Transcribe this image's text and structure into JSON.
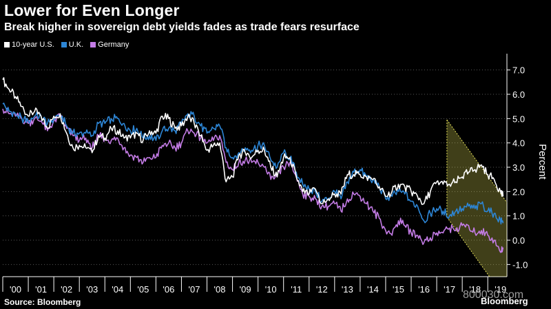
{
  "title": "Lower for Even Longer",
  "subtitle": "Break higher in sovereign debt yields fades as trade fears resurface",
  "source": "Source: Bloomberg",
  "brand": "Bloomberg",
  "watermark": "800030.com",
  "colors": {
    "us": "#ffffff",
    "uk": "#2d86d6",
    "germany": "#c47ce6",
    "highlight": "#e6e15a",
    "grid": "#5a5a5a",
    "axis": "#ffffff"
  },
  "chart_data": {
    "type": "line",
    "title": "Lower for Even Longer",
    "ylabel": "Percent",
    "xlabel": "",
    "ylim": [
      -1.5,
      7.5
    ],
    "yticks": [
      -1.0,
      0.0,
      1.0,
      2.0,
      3.0,
      4.0,
      5.0,
      6.0,
      7.0
    ],
    "ytick_labels": [
      "-1.0",
      "0.0",
      "1.0",
      "2.0",
      "3.0",
      "4.0",
      "5.0",
      "6.0",
      "7.0"
    ],
    "xlim": [
      2000.0,
      2019.75
    ],
    "xtick_labels": [
      "'00",
      "'01",
      "'02",
      "'03",
      "'04",
      "'05",
      "'06",
      "'07",
      "'08",
      "'09",
      "'10",
      "'11",
      "'12",
      "'13",
      "'14",
      "'15",
      "'16",
      "'17",
      "'18",
      "'19"
    ],
    "legend": [
      "10-year U.S.",
      "U.K.",
      "Germany"
    ],
    "annotation": {
      "type": "descending channel",
      "x_start": 2017.4,
      "x_end": 2019.75,
      "upper": [
        4.95,
        1.55
      ],
      "lower": [
        0.95,
        -2.5
      ]
    },
    "x": [
      2000.0,
      2000.25,
      2000.5,
      2000.75,
      2001.0,
      2001.25,
      2001.5,
      2001.75,
      2002.0,
      2002.25,
      2002.5,
      2002.75,
      2003.0,
      2003.25,
      2003.5,
      2003.75,
      2004.0,
      2004.25,
      2004.5,
      2004.75,
      2005.0,
      2005.25,
      2005.5,
      2005.75,
      2006.0,
      2006.25,
      2006.5,
      2006.75,
      2007.0,
      2007.25,
      2007.5,
      2007.75,
      2008.0,
      2008.25,
      2008.5,
      2008.75,
      2009.0,
      2009.25,
      2009.5,
      2009.75,
      2010.0,
      2010.25,
      2010.5,
      2010.75,
      2011.0,
      2011.25,
      2011.5,
      2011.75,
      2012.0,
      2012.25,
      2012.5,
      2012.75,
      2013.0,
      2013.25,
      2013.5,
      2013.75,
      2014.0,
      2014.25,
      2014.5,
      2014.75,
      2015.0,
      2015.25,
      2015.5,
      2015.75,
      2016.0,
      2016.25,
      2016.5,
      2016.75,
      2017.0,
      2017.25,
      2017.5,
      2017.75,
      2018.0,
      2018.25,
      2018.5,
      2018.75,
      2019.0,
      2019.25,
      2019.5,
      2019.6
    ],
    "series": [
      {
        "name": "10-year U.S.",
        "values": [
          6.6,
          6.2,
          5.9,
          5.5,
          5.1,
          5.3,
          5.1,
          4.6,
          5.1,
          5.2,
          4.4,
          3.8,
          3.9,
          3.8,
          3.6,
          4.3,
          4.2,
          4.6,
          4.5,
          4.2,
          4.2,
          4.4,
          4.1,
          4.5,
          4.4,
          5.1,
          5.0,
          4.6,
          4.7,
          5.1,
          4.8,
          4.3,
          3.7,
          3.9,
          4.0,
          2.4,
          2.6,
          3.5,
          3.6,
          3.4,
          3.7,
          3.7,
          3.0,
          2.6,
          3.4,
          3.4,
          2.6,
          2.0,
          1.9,
          2.1,
          1.5,
          1.7,
          1.9,
          1.9,
          2.7,
          2.7,
          2.7,
          2.6,
          2.5,
          2.2,
          1.8,
          2.0,
          2.3,
          2.2,
          2.0,
          1.8,
          1.5,
          2.0,
          2.4,
          2.3,
          2.3,
          2.4,
          2.6,
          2.8,
          2.9,
          3.1,
          2.7,
          2.5,
          2.0,
          1.8
        ]
      },
      {
        "name": "U.K.",
        "values": [
          5.6,
          5.3,
          5.2,
          5.0,
          4.9,
          5.1,
          5.1,
          4.8,
          5.0,
          5.2,
          4.7,
          4.4,
          4.4,
          4.4,
          4.3,
          4.8,
          4.8,
          5.0,
          5.0,
          4.8,
          4.5,
          4.6,
          4.2,
          4.3,
          4.1,
          4.5,
          4.6,
          4.5,
          4.8,
          5.2,
          5.1,
          4.7,
          4.4,
          4.6,
          4.7,
          3.8,
          3.4,
          3.6,
          3.8,
          3.7,
          3.9,
          3.9,
          3.3,
          3.0,
          3.6,
          3.4,
          2.8,
          2.3,
          2.1,
          2.0,
          1.6,
          1.7,
          2.0,
          1.7,
          2.4,
          2.8,
          2.9,
          2.6,
          2.5,
          2.2,
          1.7,
          1.8,
          2.0,
          1.9,
          1.6,
          1.4,
          0.8,
          1.1,
          1.3,
          1.2,
          1.0,
          1.2,
          1.3,
          1.4,
          1.3,
          1.5,
          1.2,
          1.1,
          0.8,
          0.7
        ]
      },
      {
        "name": "Germany",
        "values": [
          5.4,
          5.2,
          5.1,
          5.0,
          4.8,
          5.0,
          4.9,
          4.5,
          4.9,
          5.1,
          4.6,
          4.3,
          4.1,
          4.2,
          3.8,
          4.3,
          4.2,
          4.1,
          4.2,
          3.8,
          3.5,
          3.4,
          3.2,
          3.4,
          3.4,
          3.9,
          4.0,
          3.8,
          4.0,
          4.5,
          4.4,
          4.2,
          4.0,
          4.1,
          4.3,
          3.2,
          2.9,
          3.2,
          3.3,
          3.2,
          3.2,
          3.0,
          2.5,
          2.6,
          3.0,
          3.2,
          2.6,
          1.9,
          1.8,
          1.7,
          1.4,
          1.4,
          1.5,
          1.2,
          1.7,
          1.9,
          1.8,
          1.5,
          1.2,
          0.9,
          0.4,
          0.2,
          0.8,
          0.6,
          0.3,
          0.2,
          -0.1,
          0.1,
          0.3,
          0.3,
          0.5,
          0.4,
          0.6,
          0.6,
          0.3,
          0.4,
          0.2,
          0.0,
          -0.5,
          -0.3
        ]
      }
    ]
  }
}
